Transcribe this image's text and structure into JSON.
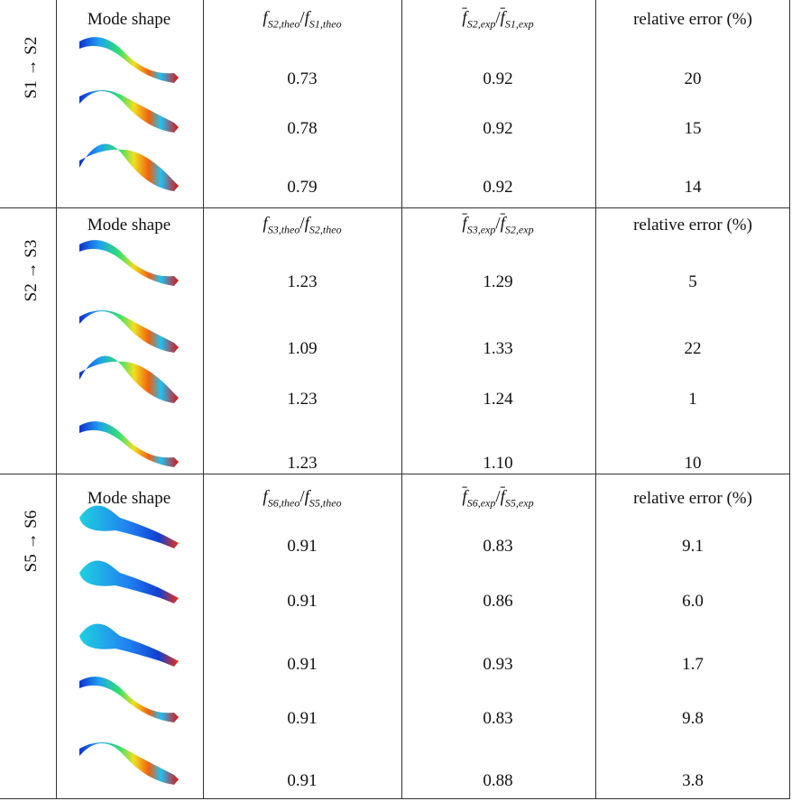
{
  "notation": {
    "f": "f",
    "slash": "/"
  },
  "sections": [
    {
      "label": "S1 → S2",
      "header": {
        "mode": "Mode shape",
        "theo": {
          "num": "S2,theo",
          "den": "S1,theo"
        },
        "exp": {
          "num": "S2,exp",
          "den": "S1,exp"
        },
        "error": "relative error (%)"
      },
      "rows": [
        [
          "0.73",
          "0.92",
          "20"
        ],
        [
          "0.78",
          "0.92",
          "15"
        ],
        [
          "0.79",
          "0.92",
          "14"
        ]
      ]
    },
    {
      "label": "S2 → S3",
      "header": {
        "mode": "Mode shape",
        "theo": {
          "num": "S3,theo",
          "den": "S2,theo"
        },
        "exp": {
          "num": "S3,exp",
          "den": "S2,exp"
        },
        "error": "relative error (%)"
      },
      "rows": [
        [
          "1.23",
          "1.29",
          "5"
        ],
        [
          "1.09",
          "1.33",
          "22"
        ],
        [
          "1.23",
          "1.24",
          "1"
        ],
        [
          "1.23",
          "1.10",
          "10"
        ]
      ]
    },
    {
      "label": "S5 → S6",
      "header": {
        "mode": "Mode shape",
        "theo": {
          "num": "S6,theo",
          "den": "S5,theo"
        },
        "exp": {
          "num": "S6,exp",
          "den": "S5,exp"
        },
        "error": "relative error (%)"
      },
      "rows": [
        [
          "0.91",
          "0.83",
          "9.1"
        ],
        [
          "0.91",
          "0.86",
          "6.0"
        ],
        [
          "0.91",
          "0.93",
          "1.7"
        ],
        [
          "0.91",
          "0.83",
          "9.8"
        ],
        [
          "0.91",
          "0.88",
          "3.8"
        ]
      ]
    }
  ]
}
